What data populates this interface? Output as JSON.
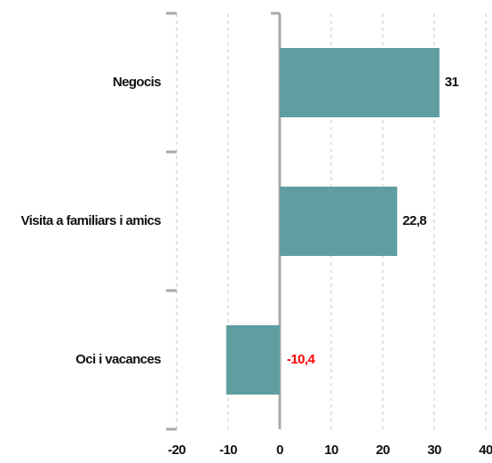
{
  "chart_data": {
    "type": "barh",
    "categories": [
      "Negocis",
      "Visita a familiars i amics",
      "Oci i vacances"
    ],
    "values": [
      31,
      22.8,
      -10.4
    ],
    "value_labels": [
      "31",
      "22,8",
      "-10,4"
    ],
    "color": "#5f9ea0",
    "label_color": "#111111",
    "negative_label_color": "#ff0000",
    "xlim": [
      -20,
      40
    ],
    "xticks": [
      -20,
      -10,
      0,
      10,
      20,
      30,
      40
    ],
    "grid": true
  }
}
